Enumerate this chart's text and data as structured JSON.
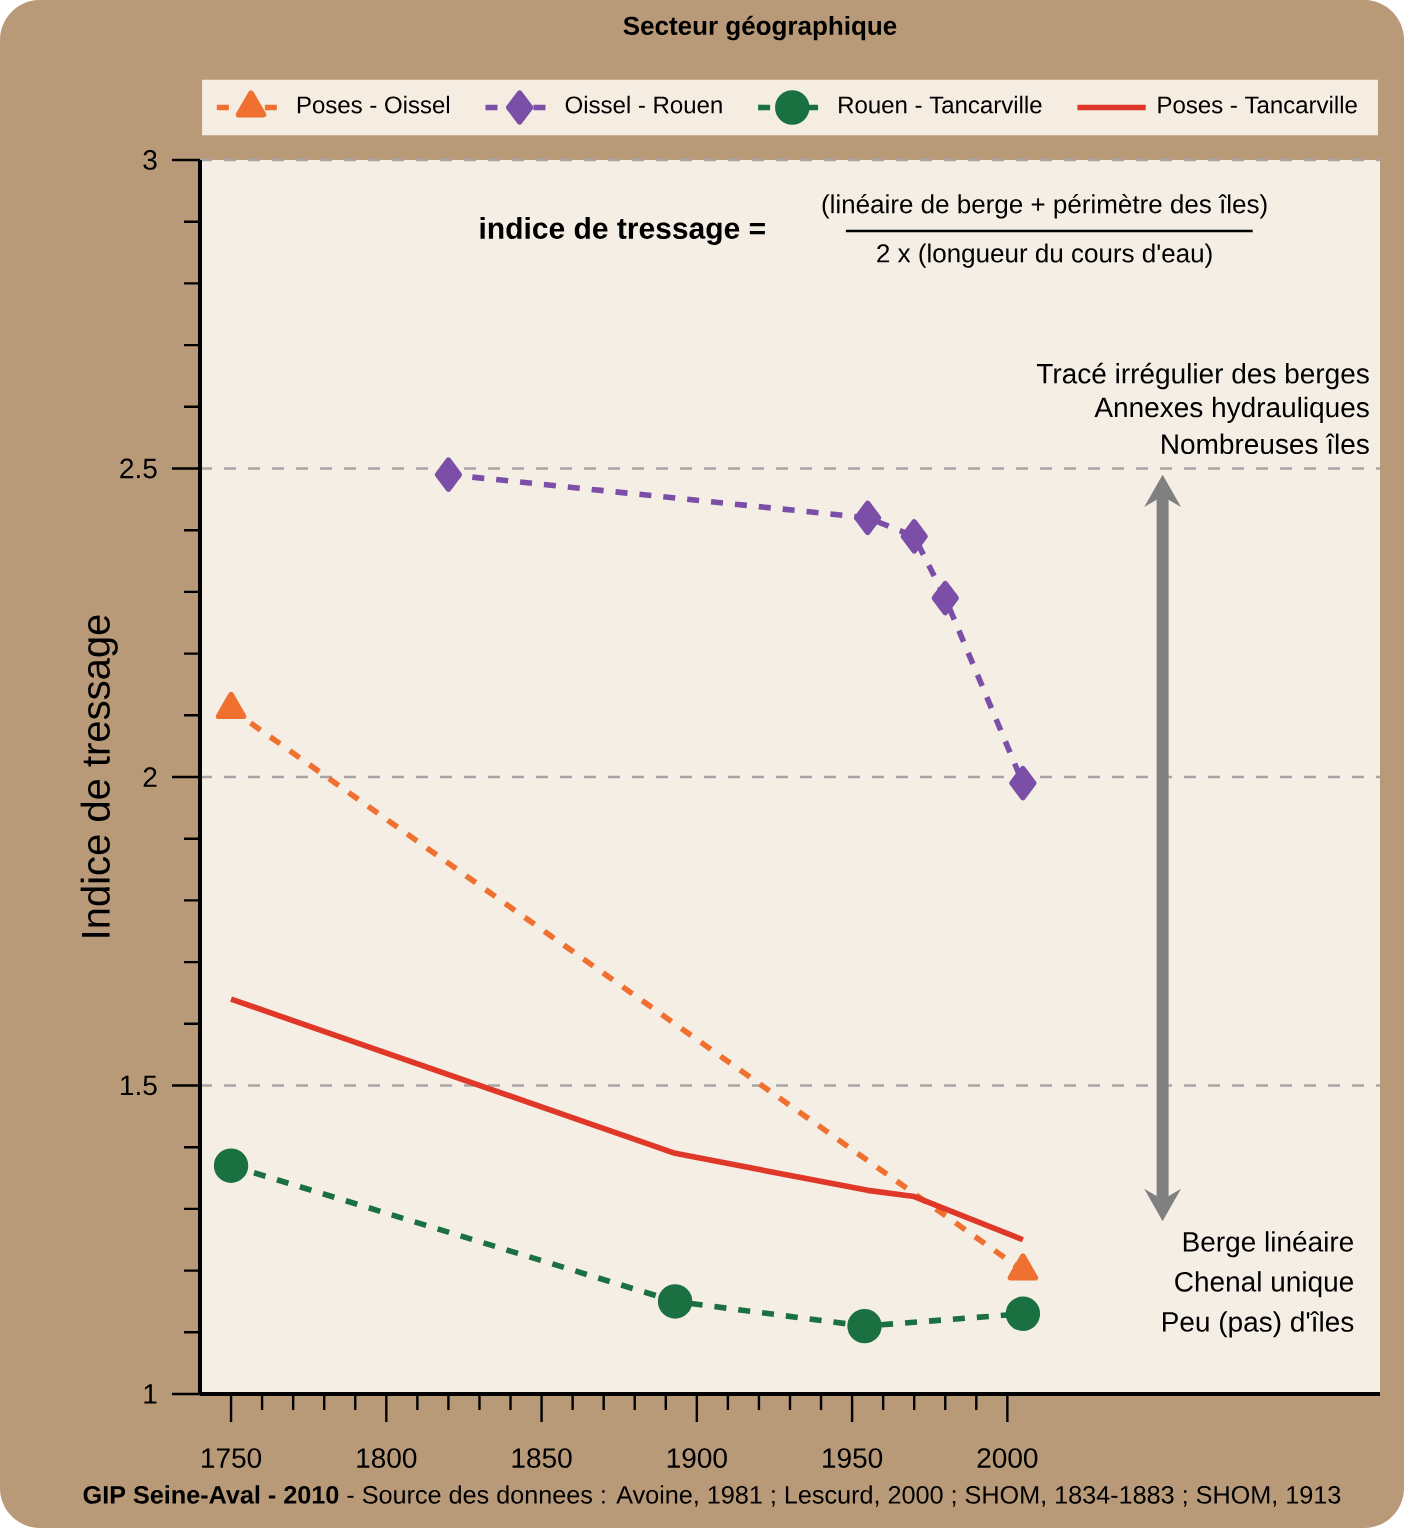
{
  "chart_data": {
    "type": "line",
    "legend_title": "Secteur géographique",
    "ylabel": "Indice de tressage",
    "xlim": [
      1740,
      2120
    ],
    "xticks": [
      1750,
      1800,
      1850,
      1900,
      1950,
      2000
    ],
    "ylim": [
      1,
      3
    ],
    "yticks": [
      1,
      1.5,
      2,
      2.5,
      3
    ],
    "grid": "y",
    "legend": "top",
    "series": [
      {
        "name": "Poses - Oissel",
        "color": "#f07030",
        "marker": "triangle",
        "line_style": "dashed",
        "x": [
          1750,
          2005
        ],
        "values": [
          2.11,
          1.2
        ]
      },
      {
        "name": "Oissel - Rouen",
        "color": "#7b4fa8",
        "marker": "diamond",
        "line_style": "dashed",
        "x": [
          1820,
          1955,
          1970,
          1980,
          2005
        ],
        "values": [
          2.49,
          2.42,
          2.39,
          2.29,
          1.99
        ]
      },
      {
        "name": "Rouen - Tancarville",
        "color": "#1a7040",
        "marker": "circle",
        "line_style": "dashed",
        "x": [
          1750,
          1893,
          1954,
          2005
        ],
        "values": [
          1.37,
          1.15,
          1.11,
          1.13
        ]
      },
      {
        "name": "Poses - Tancarville",
        "color": "#e03828",
        "marker": "none",
        "line_style": "solid",
        "x": [
          1750,
          1893,
          1955,
          1970,
          2005
        ],
        "values": [
          1.64,
          1.39,
          1.33,
          1.32,
          1.25
        ]
      }
    ],
    "annotations": [
      "indice de tressage =",
      "(linéaire de berge + périmètre des îles)",
      "2 x (longueur du cours d'eau)",
      "Tracé irrégulier des berges",
      "Annexes hydrauliques",
      "Nombreuses îles",
      "Berge linéaire",
      "Chenal unique",
      "Peu (pas) d'îles",
      "**GIP Seine-Aval - 2010** - Source des donnees : Avoine, 1981 ; Lescurd, 2000 ; SHOM, 1834-1883 ; SHOM, 1913"
    ]
  }
}
